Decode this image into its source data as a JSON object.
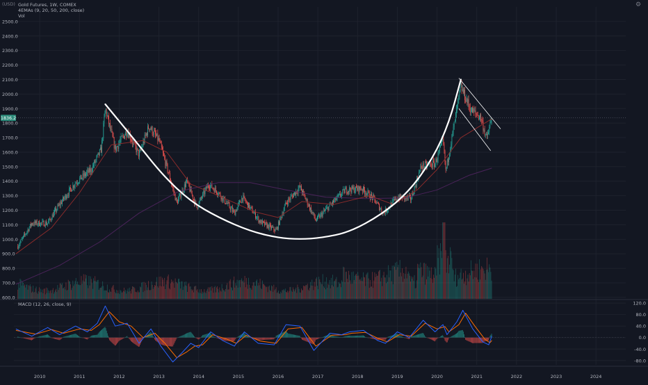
{
  "header": {
    "currency": "(USD)",
    "symbol_line": "Gold Futures, 1W, COMEX",
    "indicator_line": "4EMAs (9, 20, 50, 200, close)",
    "volume_label": "Vol",
    "macd_label": "MACD (12, 26, close, 9)"
  },
  "price_badge": "1836.2",
  "colors": {
    "background": "#131722",
    "up": "#26a69a",
    "down": "#ef5350",
    "ema_fast": "#8a2b2b",
    "ema_slow": "#4a235a",
    "macd": "#2962ff",
    "signal": "#ff6d00",
    "drawing": "#ffffff",
    "badge": "#2c8a7a"
  },
  "icons": [
    "settings-gear-icon"
  ],
  "chart_data": [
    {
      "type": "candlestick",
      "title": "Gold Futures, 1W, COMEX",
      "ylim": [
        590,
        2600
      ],
      "y_ticks": [
        "600.0",
        "700.0",
        "800.0",
        "900.0",
        "1000.0",
        "1100.0",
        "1200.0",
        "1300.0",
        "1400.0",
        "1500.0",
        "1600.0",
        "1700.0",
        "1800.0",
        "1900.0",
        "2000.0",
        "2100.0",
        "2200.0",
        "2300.0",
        "2400.0",
        "2500.0"
      ],
      "x_ticks": [
        "2010",
        "2011",
        "2012",
        "2013",
        "2014",
        "2015",
        "2016",
        "2017",
        "2018",
        "2019",
        "2020",
        "2021",
        "2022",
        "2023",
        "2024"
      ],
      "last_price": 1836.2,
      "close_path": [
        {
          "t": 2009.4,
          "y": 930
        },
        {
          "t": 2009.8,
          "y": 1110
        },
        {
          "t": 2010.2,
          "y": 1110
        },
        {
          "t": 2010.5,
          "y": 1240
        },
        {
          "t": 2010.9,
          "y": 1390
        },
        {
          "t": 2011.3,
          "y": 1480
        },
        {
          "t": 2011.55,
          "y": 1620
        },
        {
          "t": 2011.65,
          "y": 1900
        },
        {
          "t": 2011.9,
          "y": 1620
        },
        {
          "t": 2012.2,
          "y": 1750
        },
        {
          "t": 2012.5,
          "y": 1580
        },
        {
          "t": 2012.75,
          "y": 1780
        },
        {
          "t": 2013.0,
          "y": 1680
        },
        {
          "t": 2013.25,
          "y": 1450
        },
        {
          "t": 2013.45,
          "y": 1250
        },
        {
          "t": 2013.7,
          "y": 1400
        },
        {
          "t": 2013.95,
          "y": 1220
        },
        {
          "t": 2014.25,
          "y": 1380
        },
        {
          "t": 2014.5,
          "y": 1320
        },
        {
          "t": 2014.9,
          "y": 1180
        },
        {
          "t": 2015.1,
          "y": 1290
        },
        {
          "t": 2015.55,
          "y": 1120
        },
        {
          "t": 2015.95,
          "y": 1060
        },
        {
          "t": 2016.2,
          "y": 1250
        },
        {
          "t": 2016.55,
          "y": 1360
        },
        {
          "t": 2016.95,
          "y": 1130
        },
        {
          "t": 2017.4,
          "y": 1260
        },
        {
          "t": 2017.7,
          "y": 1340
        },
        {
          "t": 2018.1,
          "y": 1350
        },
        {
          "t": 2018.4,
          "y": 1280
        },
        {
          "t": 2018.65,
          "y": 1180
        },
        {
          "t": 2019.0,
          "y": 1290
        },
        {
          "t": 2019.35,
          "y": 1280
        },
        {
          "t": 2019.6,
          "y": 1500
        },
        {
          "t": 2019.95,
          "y": 1520
        },
        {
          "t": 2020.15,
          "y": 1680
        },
        {
          "t": 2020.22,
          "y": 1470
        },
        {
          "t": 2020.4,
          "y": 1740
        },
        {
          "t": 2020.6,
          "y": 2050
        },
        {
          "t": 2020.85,
          "y": 1890
        },
        {
          "t": 2021.1,
          "y": 1840
        },
        {
          "t": 2021.25,
          "y": 1690
        },
        {
          "t": 2021.38,
          "y": 1836
        }
      ],
      "ema_50": [
        {
          "t": 2009.4,
          "y": 900
        },
        {
          "t": 2010.3,
          "y": 1080
        },
        {
          "t": 2011.0,
          "y": 1320
        },
        {
          "t": 2011.8,
          "y": 1650
        },
        {
          "t": 2012.6,
          "y": 1680
        },
        {
          "t": 2013.2,
          "y": 1600
        },
        {
          "t": 2013.8,
          "y": 1380
        },
        {
          "t": 2014.5,
          "y": 1300
        },
        {
          "t": 2015.4,
          "y": 1190
        },
        {
          "t": 2016.0,
          "y": 1150
        },
        {
          "t": 2016.6,
          "y": 1260
        },
        {
          "t": 2017.4,
          "y": 1240
        },
        {
          "t": 2018.3,
          "y": 1300
        },
        {
          "t": 2018.9,
          "y": 1240
        },
        {
          "t": 2019.5,
          "y": 1340
        },
        {
          "t": 2020.0,
          "y": 1480
        },
        {
          "t": 2020.6,
          "y": 1700
        },
        {
          "t": 2021.38,
          "y": 1830
        }
      ],
      "ema_200": [
        {
          "t": 2009.4,
          "y": 690
        },
        {
          "t": 2010.5,
          "y": 820
        },
        {
          "t": 2011.5,
          "y": 980
        },
        {
          "t": 2012.5,
          "y": 1180
        },
        {
          "t": 2013.5,
          "y": 1330
        },
        {
          "t": 2014.5,
          "y": 1390
        },
        {
          "t": 2015.3,
          "y": 1390
        },
        {
          "t": 2016.2,
          "y": 1340
        },
        {
          "t": 2017.2,
          "y": 1290
        },
        {
          "t": 2018.2,
          "y": 1280
        },
        {
          "t": 2019.2,
          "y": 1285
        },
        {
          "t": 2020.0,
          "y": 1340
        },
        {
          "t": 2020.8,
          "y": 1440
        },
        {
          "t": 2021.38,
          "y": 1490
        }
      ],
      "drawings": {
        "cup_arc": [
          {
            "t": 2011.65,
            "y": 1930
          },
          {
            "t": 2012.4,
            "y": 1680
          },
          {
            "t": 2013.1,
            "y": 1440
          },
          {
            "t": 2013.8,
            "y": 1260
          },
          {
            "t": 2014.5,
            "y": 1150
          },
          {
            "t": 2015.3,
            "y": 1055
          },
          {
            "t": 2016.0,
            "y": 1010
          },
          {
            "t": 2016.55,
            "y": 1000
          },
          {
            "t": 2017.1,
            "y": 1010
          },
          {
            "t": 2017.8,
            "y": 1050
          },
          {
            "t": 2018.6,
            "y": 1170
          },
          {
            "t": 2019.3,
            "y": 1330
          },
          {
            "t": 2019.9,
            "y": 1560
          },
          {
            "t": 2020.3,
            "y": 1800
          },
          {
            "t": 2020.6,
            "y": 2100
          }
        ],
        "channel_upper": [
          {
            "t": 2020.55,
            "y": 2110
          },
          {
            "t": 2021.6,
            "y": 1760
          }
        ],
        "channel_lower": [
          {
            "t": 2020.55,
            "y": 1900
          },
          {
            "t": 2021.35,
            "y": 1610
          }
        ]
      }
    },
    {
      "type": "bar",
      "title": "Vol",
      "note": "weekly volume histogram, coloured by candle direction"
    },
    {
      "type": "line",
      "title": "MACD (12, 26, close, 9)",
      "ylim": [
        -95,
        130
      ],
      "y_ticks": [
        "120.0",
        "80.0",
        "40.0",
        "0.0",
        "-40.0",
        "-80.0"
      ],
      "series": [
        {
          "name": "MACD",
          "points": [
            {
              "t": 2009.4,
              "y": 30
            },
            {
              "t": 2009.8,
              "y": 5
            },
            {
              "t": 2010.2,
              "y": 35
            },
            {
              "t": 2010.5,
              "y": 10
            },
            {
              "t": 2010.9,
              "y": 40
            },
            {
              "t": 2011.2,
              "y": 20
            },
            {
              "t": 2011.45,
              "y": 50
            },
            {
              "t": 2011.65,
              "y": 110
            },
            {
              "t": 2011.9,
              "y": 40
            },
            {
              "t": 2012.2,
              "y": 50
            },
            {
              "t": 2012.5,
              "y": -20
            },
            {
              "t": 2012.8,
              "y": 30
            },
            {
              "t": 2013.05,
              "y": -30
            },
            {
              "t": 2013.35,
              "y": -85
            },
            {
              "t": 2013.6,
              "y": -50
            },
            {
              "t": 2013.8,
              "y": -20
            },
            {
              "t": 2014.0,
              "y": -35
            },
            {
              "t": 2014.3,
              "y": 20
            },
            {
              "t": 2014.6,
              "y": -10
            },
            {
              "t": 2014.9,
              "y": -30
            },
            {
              "t": 2015.15,
              "y": 20
            },
            {
              "t": 2015.5,
              "y": -20
            },
            {
              "t": 2015.9,
              "y": -25
            },
            {
              "t": 2016.2,
              "y": 45
            },
            {
              "t": 2016.55,
              "y": 40
            },
            {
              "t": 2016.9,
              "y": -45
            },
            {
              "t": 2017.3,
              "y": 15
            },
            {
              "t": 2017.6,
              "y": 10
            },
            {
              "t": 2017.8,
              "y": 20
            },
            {
              "t": 2018.15,
              "y": 25
            },
            {
              "t": 2018.5,
              "y": -10
            },
            {
              "t": 2018.7,
              "y": -20
            },
            {
              "t": 2019.0,
              "y": 20
            },
            {
              "t": 2019.3,
              "y": 0
            },
            {
              "t": 2019.65,
              "y": 60
            },
            {
              "t": 2019.95,
              "y": 20
            },
            {
              "t": 2020.15,
              "y": 45
            },
            {
              "t": 2020.25,
              "y": 10
            },
            {
              "t": 2020.5,
              "y": 55
            },
            {
              "t": 2020.65,
              "y": 95
            },
            {
              "t": 2020.9,
              "y": 30
            },
            {
              "t": 2021.15,
              "y": -15
            },
            {
              "t": 2021.3,
              "y": -25
            },
            {
              "t": 2021.38,
              "y": 5
            }
          ]
        },
        {
          "name": "Signal",
          "points": [
            {
              "t": 2009.4,
              "y": 25
            },
            {
              "t": 2009.9,
              "y": 12
            },
            {
              "t": 2010.3,
              "y": 28
            },
            {
              "t": 2010.6,
              "y": 15
            },
            {
              "t": 2011.0,
              "y": 30
            },
            {
              "t": 2011.3,
              "y": 25
            },
            {
              "t": 2011.5,
              "y": 45
            },
            {
              "t": 2011.75,
              "y": 90
            },
            {
              "t": 2012.0,
              "y": 55
            },
            {
              "t": 2012.3,
              "y": 40
            },
            {
              "t": 2012.6,
              "y": 0
            },
            {
              "t": 2012.9,
              "y": 15
            },
            {
              "t": 2013.15,
              "y": -20
            },
            {
              "t": 2013.45,
              "y": -70
            },
            {
              "t": 2013.7,
              "y": -50
            },
            {
              "t": 2013.9,
              "y": -30
            },
            {
              "t": 2014.1,
              "y": -25
            },
            {
              "t": 2014.35,
              "y": 10
            },
            {
              "t": 2014.7,
              "y": -5
            },
            {
              "t": 2014.95,
              "y": -20
            },
            {
              "t": 2015.2,
              "y": 8
            },
            {
              "t": 2015.55,
              "y": -12
            },
            {
              "t": 2015.95,
              "y": -20
            },
            {
              "t": 2016.25,
              "y": 30
            },
            {
              "t": 2016.6,
              "y": 35
            },
            {
              "t": 2016.95,
              "y": -30
            },
            {
              "t": 2017.35,
              "y": 8
            },
            {
              "t": 2017.7,
              "y": 10
            },
            {
              "t": 2017.85,
              "y": 15
            },
            {
              "t": 2018.2,
              "y": 18
            },
            {
              "t": 2018.55,
              "y": -5
            },
            {
              "t": 2018.75,
              "y": -15
            },
            {
              "t": 2019.05,
              "y": 10
            },
            {
              "t": 2019.35,
              "y": 5
            },
            {
              "t": 2019.7,
              "y": 50
            },
            {
              "t": 2020.0,
              "y": 30
            },
            {
              "t": 2020.2,
              "y": 38
            },
            {
              "t": 2020.3,
              "y": 20
            },
            {
              "t": 2020.55,
              "y": 45
            },
            {
              "t": 2020.72,
              "y": 85
            },
            {
              "t": 2020.95,
              "y": 40
            },
            {
              "t": 2021.2,
              "y": -5
            },
            {
              "t": 2021.33,
              "y": -18
            },
            {
              "t": 2021.38,
              "y": -10
            }
          ]
        }
      ]
    }
  ]
}
